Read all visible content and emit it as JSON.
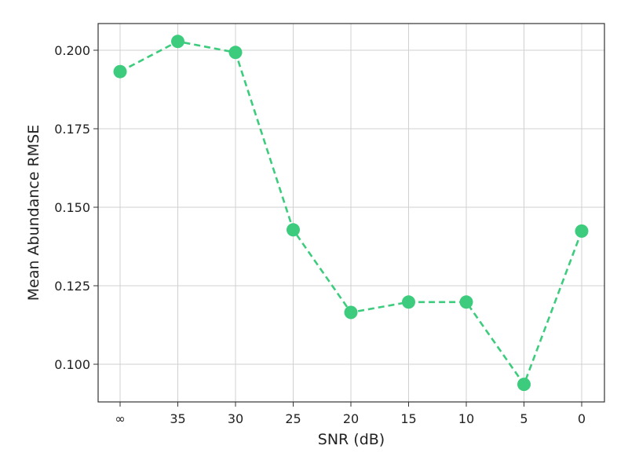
{
  "chart_data": {
    "type": "line",
    "xlabel": "SNR (dB)",
    "ylabel": "Mean Abundance RMSE",
    "categories": [
      "∞",
      "35",
      "30",
      "25",
      "20",
      "15",
      "10",
      "5",
      "0"
    ],
    "series": [
      {
        "values": [
          0.1932,
          0.2028,
          0.1993,
          0.1428,
          0.1165,
          0.1198,
          0.1198,
          0.0936,
          0.1424
        ]
      }
    ],
    "ylim": [
      0.088,
      0.2085
    ],
    "yticks": [
      0.1,
      0.125,
      0.15,
      0.175,
      0.2
    ],
    "ytick_labels": [
      "0.100",
      "0.125",
      "0.150",
      "0.175",
      "0.200"
    ],
    "grid": true,
    "legend": "none",
    "line_style": "dashed",
    "marker": "circle",
    "colors": {
      "series": "#3dcc7e",
      "grid": "#d0d0d0",
      "frame": "#333333"
    }
  }
}
